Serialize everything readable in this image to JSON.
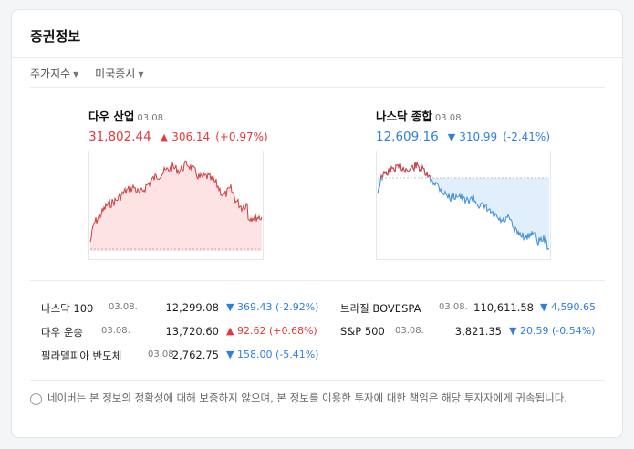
{
  "widget": {
    "title": "증권정보",
    "tabs": [
      {
        "label": "주가지수"
      },
      {
        "label": "미국증시"
      }
    ]
  },
  "main_indices": [
    {
      "name": "다우 산업",
      "date": "03.08.",
      "value": "31,802.44",
      "direction": "up",
      "arrow": "▲",
      "change": "306.14",
      "percent": "(+0.97%)"
    },
    {
      "name": "나스닥 종합",
      "date": "03.08.",
      "value": "12,609.16",
      "direction": "down",
      "arrow": "▼",
      "change": "310.99",
      "percent": "(-2.41%)"
    }
  ],
  "list": [
    {
      "name": "나스닥 100",
      "date": "03.08.",
      "value": "12,299.08",
      "direction": "down",
      "arrow": "▼",
      "change": "369.43",
      "percent": "(-2.92%)"
    },
    {
      "name": "다우 운송",
      "date": "03.08.",
      "value": "13,720.60",
      "direction": "up",
      "arrow": "▲",
      "change": "92.62",
      "percent": "(+0.68%)"
    },
    {
      "name": "필라델피아 반도체",
      "date": "03.08.",
      "value": "2,762.75",
      "direction": "down",
      "arrow": "▼",
      "change": "158.00",
      "percent": "(-5.41%)"
    },
    {
      "name": "브라질 BOVESPA",
      "date": "03.08.",
      "value": "110,611.58",
      "direction": "down",
      "arrow": "▼",
      "change": "4,590.65",
      "percent": ""
    },
    {
      "name": "S&P 500",
      "date": "03.08.",
      "value": "3,821.35",
      "direction": "down",
      "arrow": "▼",
      "change": "20.59",
      "percent": "(-0.54%)"
    }
  ],
  "notice": {
    "icon": "info-icon",
    "text": "네이버는 본 정보의 정확성에 대해 보증하지 않으며, 본 정보를 이용한 투자에 대한 책임은 해당 투자자에게 귀속됩니다."
  },
  "colors": {
    "up": "#e4393c",
    "down": "#2f7fe0",
    "up_fill": "#fde3e3",
    "down_fill": "#e1eefb"
  }
}
